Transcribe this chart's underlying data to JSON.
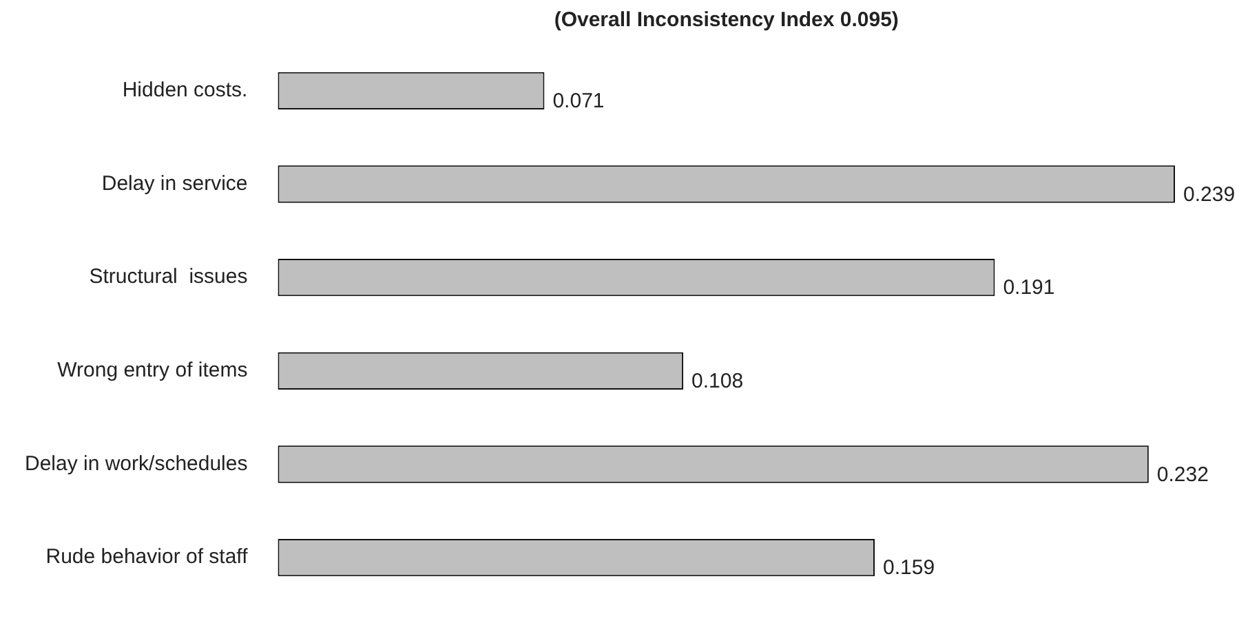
{
  "chart_data": {
    "type": "bar",
    "orientation": "horizontal",
    "title": "(Overall Inconsistency Index 0.095)",
    "categories": [
      "Hidden costs.",
      "Delay in service",
      "Structural  issues",
      "Wrong entry of items",
      "Delay in work/schedules",
      "Rude behavior of staff"
    ],
    "values": [
      0.071,
      0.239,
      0.191,
      0.108,
      0.232,
      0.159
    ],
    "color": "#bfbfbf",
    "data_labels": true,
    "legend": false,
    "grid": false,
    "tick_labels": "y"
  }
}
